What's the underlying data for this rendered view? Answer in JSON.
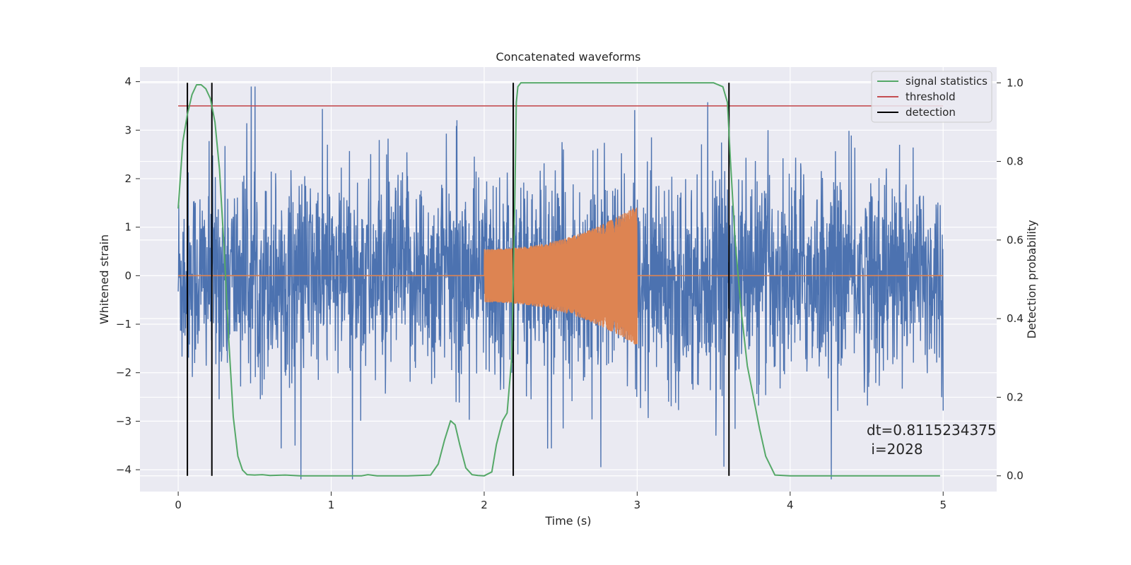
{
  "chart_data": {
    "type": "line",
    "title": "Concatenated waveforms",
    "xlabel": "Time (s)",
    "ylabel": "Whitened strain",
    "y2label": "Detection probability",
    "xlim": [
      -0.25,
      5.35
    ],
    "ylim": [
      -4.45,
      4.3
    ],
    "y2lim": [
      -0.04,
      1.04
    ],
    "x_ticks": [
      0,
      1,
      2,
      3,
      4,
      5
    ],
    "y_ticks": [
      -4,
      -3,
      -2,
      -1,
      0,
      1,
      2,
      3,
      4
    ],
    "y2_ticks": [
      0.0,
      0.2,
      0.4,
      0.6,
      0.8,
      1.0
    ],
    "grid": true,
    "legend_position": "top-right",
    "legend": [
      "signal statistics",
      "threshold",
      "detection"
    ],
    "colors": {
      "strain": "#4c72b0",
      "injected": "#dd8452",
      "signal": "#55a868",
      "threshold": "#c44e52",
      "detection": "#000000",
      "background": "#eaeaf2",
      "grid": "#ffffff"
    },
    "series": [
      {
        "name": "strain",
        "axis": "left",
        "kind": "noise",
        "x_range": [
          0,
          5
        ],
        "amplitude_range": [
          -4.2,
          3.9
        ]
      },
      {
        "name": "injected",
        "axis": "left",
        "kind": "chirp",
        "x_range": [
          2.0,
          3.0
        ],
        "amplitude": [
          0.55,
          1.45
        ]
      },
      {
        "name": "signal statistics",
        "axis": "right",
        "x": [
          0,
          0.03,
          0.06,
          0.09,
          0.12,
          0.15,
          0.18,
          0.21,
          0.24,
          0.27,
          0.3,
          0.33,
          0.36,
          0.39,
          0.42,
          0.45,
          0.5,
          0.55,
          0.6,
          0.7,
          0.8,
          1.0,
          1.2,
          1.24,
          1.3,
          1.5,
          1.65,
          1.7,
          1.74,
          1.78,
          1.81,
          1.84,
          1.88,
          1.92,
          1.96,
          2.0,
          2.05,
          2.08,
          2.12,
          2.15,
          2.18,
          2.2,
          2.21,
          2.22,
          2.24,
          2.3,
          2.5,
          3.0,
          3.5,
          3.56,
          3.59,
          3.61,
          3.64,
          3.68,
          3.72,
          3.76,
          3.8,
          3.84,
          3.9,
          4.0,
          4.5,
          4.98
        ],
        "values": [
          0.68,
          0.85,
          0.92,
          0.97,
          0.995,
          0.995,
          0.985,
          0.96,
          0.9,
          0.78,
          0.58,
          0.35,
          0.15,
          0.05,
          0.015,
          0.003,
          0.002,
          0.003,
          0.001,
          0.002,
          0.0,
          0.0,
          0.0,
          0.003,
          0.0,
          0.0,
          0.002,
          0.03,
          0.09,
          0.14,
          0.13,
          0.08,
          0.02,
          0.003,
          0.001,
          0.0,
          0.01,
          0.08,
          0.14,
          0.16,
          0.3,
          0.7,
          0.95,
          0.99,
          1.0,
          1.0,
          1.0,
          1.0,
          1.0,
          0.99,
          0.95,
          0.8,
          0.6,
          0.42,
          0.28,
          0.2,
          0.12,
          0.05,
          0.002,
          0.0,
          0.0,
          0.0
        ]
      },
      {
        "name": "threshold",
        "axis": "left",
        "x": [
          0,
          5
        ],
        "values": [
          3.5,
          3.5
        ]
      },
      {
        "name": "detection",
        "axis": "right",
        "x": [
          0.06,
          0.22,
          2.19,
          3.6
        ],
        "ymin": 0.0,
        "ymax": 1.0
      }
    ],
    "annotation": {
      "dt": "dt=0.8115234375",
      "i": " i=2028"
    }
  }
}
